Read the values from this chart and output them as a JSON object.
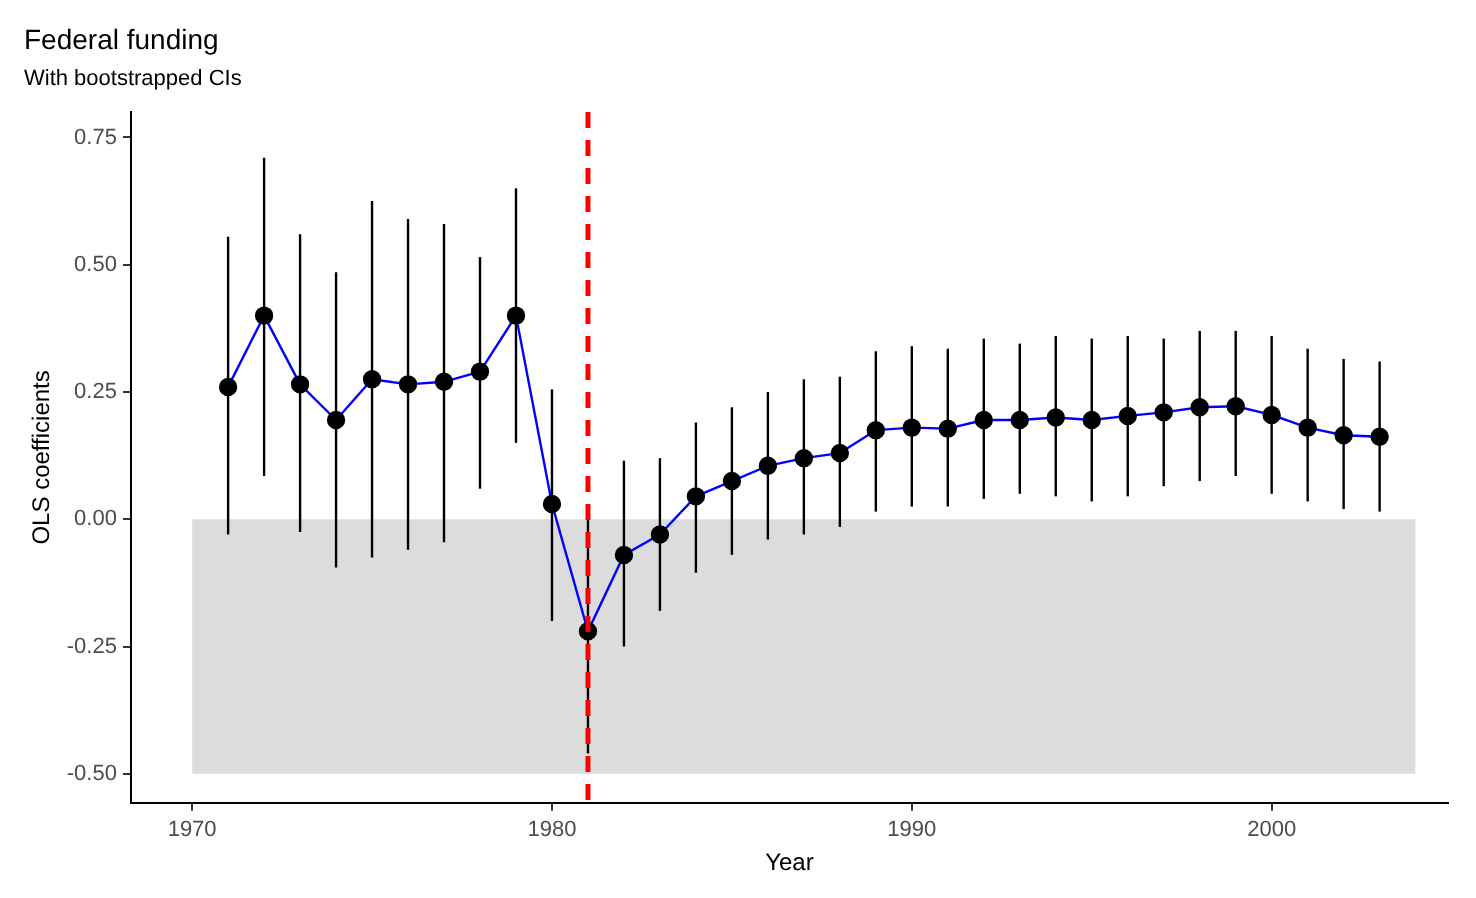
{
  "chart_data": {
    "type": "line",
    "title": "Federal funding",
    "subtitle": "With bootstrapped CIs",
    "xlabel": "Year",
    "ylabel": "OLS coefficients",
    "x": [
      1971,
      1972,
      1973,
      1974,
      1975,
      1976,
      1977,
      1978,
      1979,
      1980,
      1981,
      1982,
      1983,
      1984,
      1985,
      1986,
      1987,
      1988,
      1989,
      1990,
      1991,
      1992,
      1993,
      1994,
      1995,
      1996,
      1997,
      1998,
      1999,
      2000,
      2001,
      2002,
      2003
    ],
    "series": [
      {
        "type": "area",
        "marker": "none",
        "color": "#dcdcdc",
        "x": [
          1970,
          2004
        ],
        "values": [
          -0.5,
          -0.5
        ]
      },
      {
        "color": "#0000ff",
        "values": [
          0.26,
          0.4,
          0.265,
          0.195,
          0.275,
          0.265,
          0.27,
          0.29,
          0.4,
          0.03,
          -0.22,
          -0.07,
          -0.03,
          0.045,
          0.075,
          0.105,
          0.12,
          0.13,
          0.175,
          0.18,
          0.178,
          0.195,
          0.195,
          0.2,
          0.195,
          0.203,
          0.21,
          0.22,
          0.222,
          0.205,
          0.18,
          0.165,
          0.162
        ],
        "errors": [
          [
            -0.03,
            0.555
          ],
          [
            0.085,
            0.71
          ],
          [
            -0.025,
            0.56
          ],
          [
            -0.095,
            0.485
          ],
          [
            -0.075,
            0.625
          ],
          [
            -0.06,
            0.59
          ],
          [
            -0.045,
            0.58
          ],
          [
            0.06,
            0.515
          ],
          [
            0.15,
            0.65
          ],
          [
            -0.2,
            0.255
          ],
          [
            -0.46,
            0.01
          ],
          [
            -0.25,
            0.115
          ],
          [
            -0.18,
            0.12
          ],
          [
            -0.105,
            0.19
          ],
          [
            -0.07,
            0.22
          ],
          [
            -0.04,
            0.25
          ],
          [
            -0.03,
            0.275
          ],
          [
            -0.015,
            0.28
          ],
          [
            0.015,
            0.33
          ],
          [
            0.025,
            0.34
          ],
          [
            0.025,
            0.335
          ],
          [
            0.04,
            0.355
          ],
          [
            0.05,
            0.345
          ],
          [
            0.045,
            0.36
          ],
          [
            0.035,
            0.355
          ],
          [
            0.045,
            0.36
          ],
          [
            0.065,
            0.355
          ],
          [
            0.075,
            0.37
          ],
          [
            0.085,
            0.37
          ],
          [
            0.05,
            0.36
          ],
          [
            0.035,
            0.335
          ],
          [
            0.02,
            0.315
          ],
          [
            0.015,
            0.31
          ]
        ]
      }
    ],
    "marker": "circle",
    "line_style": "solid",
    "grid": false,
    "legend": false,
    "xlim": [
      1968.3,
      2004.9
    ],
    "xticks": [
      1970,
      1980,
      1990,
      2000
    ],
    "ylim": [
      -0.557,
      0.8
    ],
    "yticks": [
      {
        "value": -0.5,
        "label": "-0.50"
      },
      {
        "value": -0.25,
        "label": "-0.25"
      },
      {
        "value": 0,
        "label": "0.00"
      },
      {
        "value": 0.25,
        "label": "0.25"
      },
      {
        "value": 0.5,
        "label": "0.50"
      },
      {
        "value": 0.75,
        "label": "0.75"
      }
    ],
    "ref_lines": [
      {
        "axis": "x",
        "value": 1981,
        "color": "#ff0000",
        "line_style": "dashed"
      }
    ]
  }
}
